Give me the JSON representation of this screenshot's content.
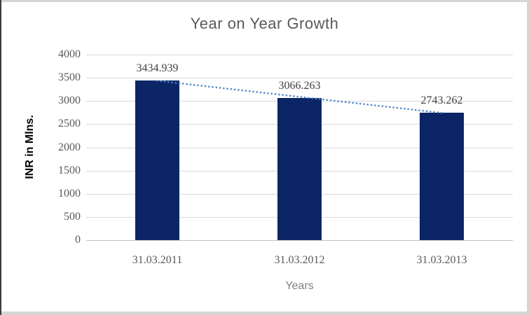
{
  "chart_data": {
    "type": "bar",
    "title": "Year on Year Growth",
    "xlabel": "Years",
    "ylabel": "INR in Mlns.",
    "categories": [
      "31.03.2011",
      "31.03.2012",
      "31.03.2013"
    ],
    "values": [
      3434.939,
      3066.263,
      2743.262
    ],
    "data_labels": [
      "3434.939",
      "3066.263",
      "2743.262"
    ],
    "yticks": [
      0,
      500,
      1000,
      1500,
      2000,
      2500,
      3000,
      3500,
      4000
    ],
    "ylim": [
      0,
      4000
    ],
    "grid": true,
    "legend": "none",
    "trendline": {
      "type": "linear",
      "style": "dotted"
    },
    "colors": {
      "bar": "#0c2566",
      "trendline": "#4e86c6",
      "gridline": "#d9d9d9",
      "axis_line": "#c3c3c3",
      "title": "#595959",
      "tick_label": "#595959",
      "data_label": "#3f3f3f",
      "axis_title_y": "#000000",
      "axis_title_x": "#7f7f7f",
      "frame_light": "#d6d6d6",
      "frame_dark": "#3c3c3c"
    }
  }
}
